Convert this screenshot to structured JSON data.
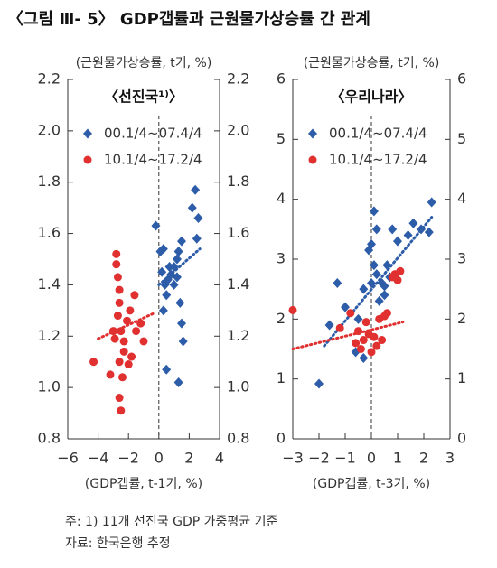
{
  "title": "〈그림 Ⅲ- 5〉 GDP갭률과 근원물가상승률 간 관계",
  "notes": [
    "주: 1) 11개 선진국 GDP 가중평균 기준",
    "자료: 한국은행 추정"
  ],
  "chart_data": [
    {
      "type": "scatter",
      "title": "〈선진국¹⁾〉",
      "y_label": "(근원물가상승률, t기, %)",
      "x_label": "(GDP갭률, t-1기, %)",
      "xlim": [
        -6,
        4
      ],
      "ylim": [
        0.8,
        2.2
      ],
      "xticks": [
        {
          "value": -6,
          "label": "−6"
        },
        {
          "value": -4,
          "label": "−4"
        },
        {
          "value": -2,
          "label": "−2"
        },
        0,
        2,
        4
      ],
      "yticks": [
        0.8,
        {
          "value": 1,
          "label": "1.0"
        },
        1.2,
        1.4,
        1.6,
        1.8,
        {
          "value": 2,
          "label": "2.0"
        },
        2.2
      ],
      "series": [
        {
          "name": "00.1/4~07.4/4",
          "color": "#2d5ca8",
          "marker": "diamond",
          "x": [
            -0.2,
            0.1,
            0.3,
            0.2,
            0.4,
            0.5,
            0.3,
            0.6,
            0.7,
            0.8,
            1.0,
            1.2,
            1.3,
            1.5,
            1.4,
            1.5,
            1.6,
            0.5,
            1.3,
            1.2,
            2.2,
            2.4,
            2.6,
            2.5,
            1.0
          ],
          "y": [
            1.63,
            1.53,
            1.54,
            1.45,
            1.4,
            1.36,
            1.3,
            1.42,
            1.47,
            1.44,
            1.47,
            1.5,
            1.53,
            1.57,
            1.33,
            1.25,
            1.18,
            1.07,
            1.02,
            1.43,
            1.7,
            1.77,
            1.66,
            1.58,
            1.4
          ],
          "trend": {
            "x": [
              0,
              2.7
            ],
            "y": [
              1.4,
              1.54
            ]
          }
        },
        {
          "name": "10.1/4~17.2/4",
          "color": "#e03030",
          "marker": "circle",
          "x": [
            -4.3,
            -2.8,
            -2.8,
            -2.7,
            -2.6,
            -2.6,
            -2.7,
            -2.5,
            -2.3,
            -2.3,
            -2.6,
            -2.4,
            -2.6,
            -2.5,
            -2.9,
            -3.0,
            -2.1,
            -1.9,
            -1.6,
            -1.5,
            -1.2,
            -1.0,
            -2.0,
            -1.8,
            -3.2
          ],
          "y": [
            1.1,
            1.52,
            1.48,
            1.43,
            1.38,
            1.33,
            1.28,
            1.22,
            1.18,
            1.14,
            1.1,
            1.04,
            0.96,
            0.91,
            1.19,
            1.22,
            1.26,
            1.3,
            1.36,
            1.22,
            1.25,
            1.18,
            1.09,
            1.12,
            1.05
          ],
          "trend": {
            "x": [
              -4,
              -0.3
            ],
            "y": [
              1.19,
              1.29
            ]
          }
        }
      ]
    },
    {
      "type": "scatter",
      "title": "〈우리나라〉",
      "y_label": "(근원물가상승률, t기, %)",
      "x_label": "(GDP갭률, t-3기, %)",
      "xlim": [
        -3,
        3
      ],
      "ylim": [
        0,
        6
      ],
      "xticks": [
        {
          "value": -3,
          "label": "−3"
        },
        {
          "value": -2,
          "label": "−2"
        },
        {
          "value": -1,
          "label": "−1"
        },
        0,
        1,
        2,
        3
      ],
      "yticks": [
        0,
        1,
        2,
        3,
        4,
        5,
        6
      ],
      "series": [
        {
          "name": "00.1/4~07.4/4",
          "color": "#2d5ca8",
          "marker": "diamond",
          "x": [
            -2.0,
            -1.6,
            -1.3,
            -1.0,
            -0.6,
            -0.5,
            -0.3,
            0.0,
            -0.1,
            0.0,
            0.1,
            0.2,
            0.3,
            0.4,
            0.5,
            0.6,
            0.7,
            0.1,
            0.2,
            0.8,
            1.0,
            1.4,
            1.6,
            1.9,
            2.3,
            2.2,
            -0.3,
            0.5
          ],
          "y": [
            0.92,
            1.9,
            2.6,
            2.2,
            1.45,
            2.0,
            2.5,
            2.6,
            3.15,
            3.25,
            2.9,
            2.75,
            2.3,
            2.6,
            2.55,
            2.9,
            2.7,
            3.8,
            3.5,
            3.5,
            3.3,
            3.4,
            3.6,
            3.5,
            3.95,
            3.45,
            1.35,
            2.4
          ],
          "trend": {
            "x": [
              -1.8,
              2.3
            ],
            "y": [
              1.55,
              3.7
            ]
          }
        },
        {
          "name": "10.1/4~17.2/4",
          "color": "#e03030",
          "marker": "circle",
          "x": [
            -3.0,
            -1.2,
            -0.8,
            -0.5,
            -0.4,
            -0.3,
            -0.2,
            -0.1,
            0.0,
            0.1,
            0.2,
            0.3,
            0.4,
            0.6,
            0.8,
            0.9,
            1.0,
            1.1,
            0.5,
            -0.6
          ],
          "y": [
            2.15,
            1.85,
            2.1,
            1.8,
            1.5,
            1.65,
            1.95,
            1.75,
            1.45,
            1.7,
            1.55,
            2.0,
            1.65,
            2.1,
            2.7,
            2.75,
            2.65,
            2.8,
            2.05,
            1.6
          ],
          "trend": {
            "x": [
              -3,
              1.2
            ],
            "y": [
              1.5,
              1.95
            ]
          }
        }
      ]
    }
  ]
}
